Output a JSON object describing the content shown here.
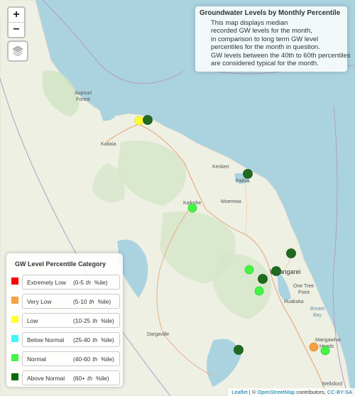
{
  "info": {
    "title": "Groundwater Levels by Monthly Percentile",
    "lines": [
      "This map displays median",
      "recorded GW levels for the month,",
      "in comparison to long term GW level",
      "percentiles for the month in question.",
      "GW levels between the 40th to 60th percentiles",
      "are considered typical for the month."
    ]
  },
  "zoom": {
    "in": "+",
    "out": "−"
  },
  "legend": {
    "title": "GW Level Percentile Category",
    "th": "th",
    "pct": "%ile)",
    "items": [
      {
        "label": "Extremely Low",
        "range": "(0-5",
        "color": "#ff0000"
      },
      {
        "label": "Very Low",
        "range": "(5-10",
        "color": "#f7a040"
      },
      {
        "label": "Low",
        "range": "(10-25",
        "color": "#ffff33"
      },
      {
        "label": "Below Normal",
        "range": "(25-40",
        "color": "#44f5f5"
      },
      {
        "label": "Normal",
        "range": "(40-60",
        "color": "#44f544"
      },
      {
        "label": "Above Normal",
        "range": "(60+",
        "color": "#0a6b0a"
      }
    ]
  },
  "places": {
    "aupouri_1": "Aupouri",
    "aupouri_2": "Forest",
    "kaitaia": "Kaitaia",
    "kerikeri": "Kerikeri",
    "paihia": "Paihia",
    "kaikohe": "Kaikohe",
    "moerewa": "Moerewa",
    "whangarei": "Whangarei",
    "one_tree_1": "One Tree",
    "one_tree_2": "Point",
    "ruakaka": "Ruakaka",
    "bream_1": "Bream",
    "bream_2": "Bay",
    "dargaville": "Dargaville",
    "mangawhai_1": "Mangawhai",
    "mangawhai_2": "Heads",
    "wellsford": "Wellsford"
  },
  "attribution": {
    "leaflet": "Leaflet",
    "sep": " | © ",
    "osm": "OpenStreetMap",
    "contrib": " contributors, ",
    "license": "CC-BY-SA"
  }
}
